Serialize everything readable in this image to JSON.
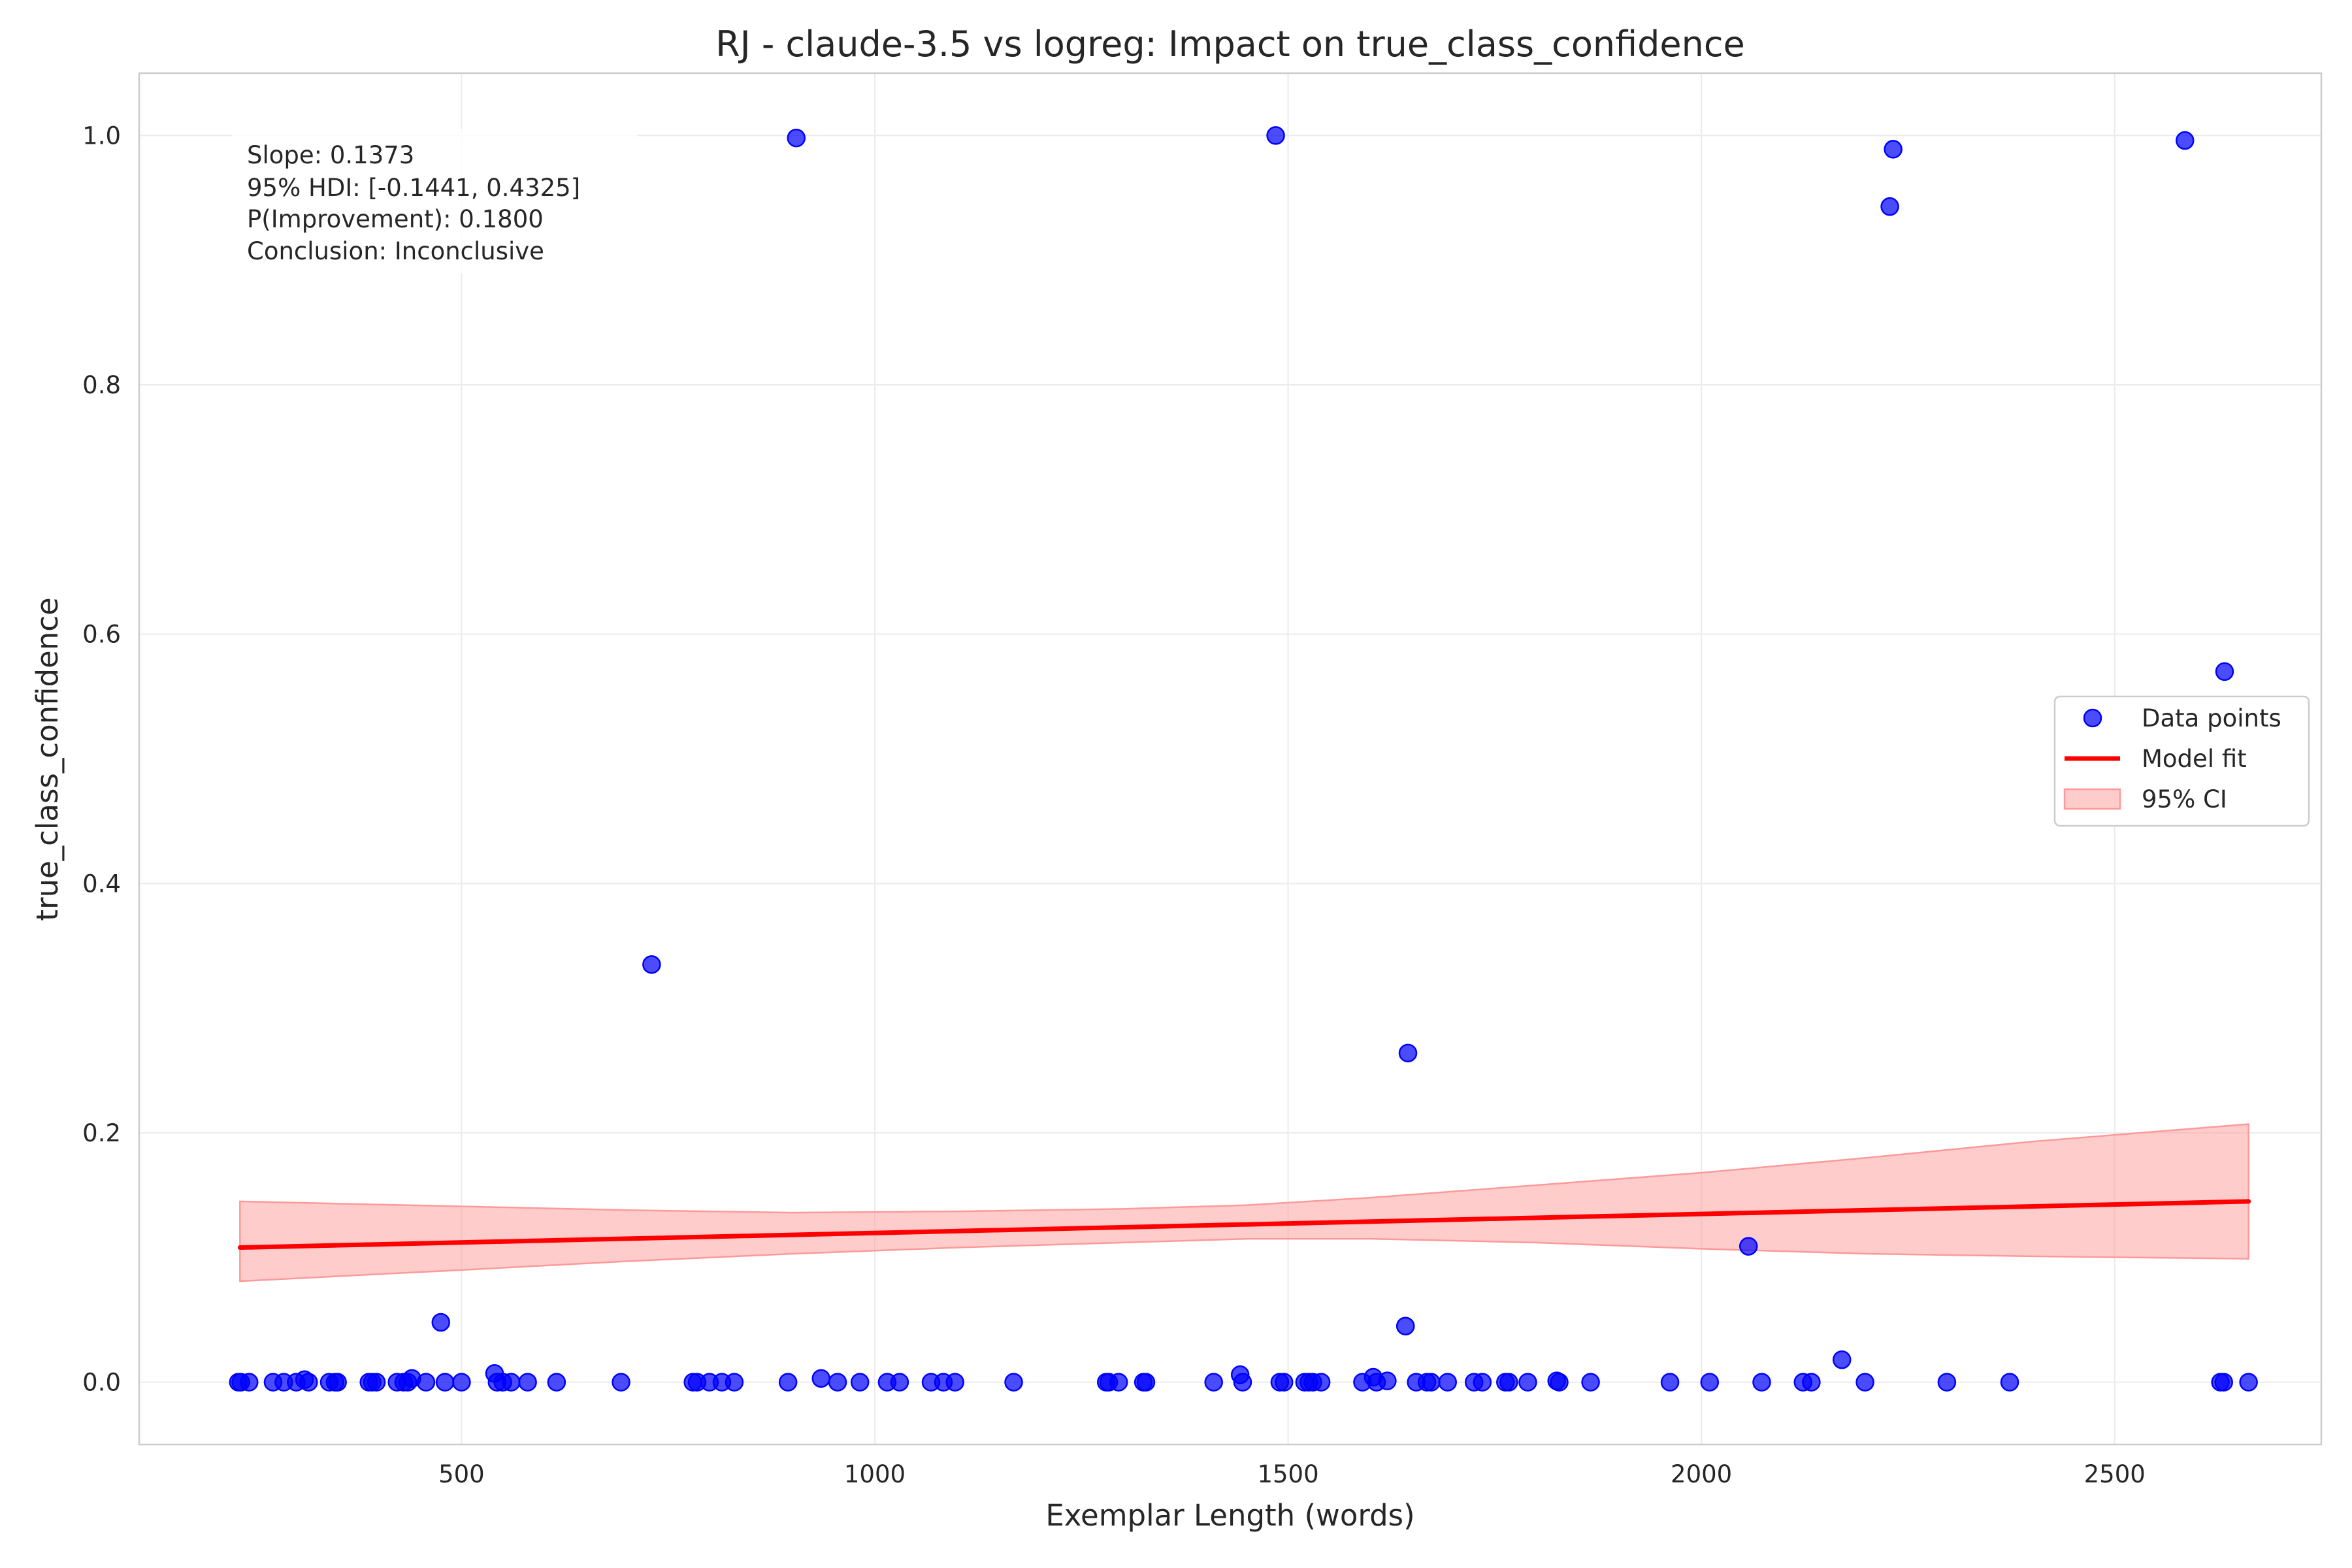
{
  "chart_data": {
    "type": "scatter",
    "title": "RJ - claude-3.5 vs logreg: Impact on true_class_confidence",
    "xlabel": "Exemplar Length (words)",
    "ylabel": "true_class_confidence",
    "xlim": [
      110,
      2750
    ],
    "ylim": [
      -0.05,
      1.05
    ],
    "xticks": [
      500,
      1000,
      1500,
      2000,
      2500
    ],
    "xtick_labels": [
      "500",
      "1000",
      "1500",
      "2000",
      "2500"
    ],
    "yticks": [
      0.0,
      0.2,
      0.4,
      0.6,
      0.8,
      1.0
    ],
    "ytick_labels": [
      "0.0",
      "0.2",
      "0.4",
      "0.6",
      "0.8",
      "1.0"
    ],
    "grid": true,
    "legend": {
      "placement": "center-right",
      "entries": [
        "Data points",
        "Model fit",
        "95% CI"
      ]
    },
    "annotation": [
      "Slope: 0.1373",
      "95% HDI: [-0.1441, 0.4325]",
      "P(Improvement): 0.1800",
      "Conclusion: Inconclusive"
    ],
    "colors": {
      "points": "#0000ff",
      "fit": "#ff0000",
      "ci": "#ff9999"
    },
    "series": [
      {
        "name": "Data points",
        "kind": "scatter",
        "points": [
          [
            230,
            0
          ],
          [
            233,
            0
          ],
          [
            243,
            0
          ],
          [
            272,
            0
          ],
          [
            285,
            0
          ],
          [
            300,
            0
          ],
          [
            310,
            0.002
          ],
          [
            315,
            0
          ],
          [
            340,
            0
          ],
          [
            347,
            0
          ],
          [
            350,
            0
          ],
          [
            388,
            0
          ],
          [
            392,
            0
          ],
          [
            397,
            0
          ],
          [
            422,
            0
          ],
          [
            430,
            0
          ],
          [
            435,
            0
          ],
          [
            440,
            0.003
          ],
          [
            457,
            0
          ],
          [
            475,
            0.048
          ],
          [
            480,
            0
          ],
          [
            500,
            0
          ],
          [
            540,
            0.007
          ],
          [
            543,
            0
          ],
          [
            550,
            0
          ],
          [
            560,
            0
          ],
          [
            580,
            0
          ],
          [
            615,
            0
          ],
          [
            693,
            0
          ],
          [
            730,
            0.335
          ],
          [
            780,
            0
          ],
          [
            785,
            0
          ],
          [
            800,
            0
          ],
          [
            815,
            0
          ],
          [
            830,
            0
          ],
          [
            895,
            0
          ],
          [
            905,
            0.998
          ],
          [
            935,
            0.003
          ],
          [
            955,
            0
          ],
          [
            982,
            0
          ],
          [
            1015,
            0
          ],
          [
            1030,
            0
          ],
          [
            1068,
            0
          ],
          [
            1083,
            0
          ],
          [
            1097,
            0
          ],
          [
            1168,
            0
          ],
          [
            1280,
            0
          ],
          [
            1283,
            0
          ],
          [
            1295,
            0
          ],
          [
            1325,
            0
          ],
          [
            1328,
            0
          ],
          [
            1410,
            0
          ],
          [
            1442,
            0.006
          ],
          [
            1445,
            0
          ],
          [
            1485,
            1.0
          ],
          [
            1490,
            0
          ],
          [
            1495,
            0
          ],
          [
            1520,
            0
          ],
          [
            1525,
            0
          ],
          [
            1530,
            0
          ],
          [
            1540,
            0
          ],
          [
            1590,
            0
          ],
          [
            1603,
            0.004
          ],
          [
            1607,
            0
          ],
          [
            1620,
            0.001
          ],
          [
            1642,
            0.045
          ],
          [
            1645,
            0.264
          ],
          [
            1655,
            0
          ],
          [
            1668,
            0
          ],
          [
            1673,
            0
          ],
          [
            1693,
            0
          ],
          [
            1725,
            0
          ],
          [
            1735,
            0
          ],
          [
            1763,
            0
          ],
          [
            1767,
            0
          ],
          [
            1790,
            0
          ],
          [
            1825,
            0.001
          ],
          [
            1828,
            0
          ],
          [
            1866,
            0
          ],
          [
            1962,
            0
          ],
          [
            2010,
            0
          ],
          [
            2057,
            0.109
          ],
          [
            2073,
            0
          ],
          [
            2123,
            0
          ],
          [
            2133,
            0
          ],
          [
            2170,
            0.018
          ],
          [
            2198,
            0
          ],
          [
            2228,
            0.943
          ],
          [
            2232,
            0.989
          ],
          [
            2297,
            0
          ],
          [
            2373,
            0
          ],
          [
            2585,
            0.996
          ],
          [
            2628,
            0
          ],
          [
            2632,
            0
          ],
          [
            2633,
            0.57
          ],
          [
            2662,
            0
          ]
        ]
      },
      {
        "name": "Model fit",
        "kind": "line",
        "points": [
          [
            232,
            0.108
          ],
          [
            2662,
            0.145
          ]
        ]
      },
      {
        "name": "95% CI",
        "kind": "band",
        "upper": [
          [
            232,
            0.145
          ],
          [
            500,
            0.141
          ],
          [
            700,
            0.138
          ],
          [
            900,
            0.136
          ],
          [
            1100,
            0.137
          ],
          [
            1300,
            0.139
          ],
          [
            1450,
            0.142
          ],
          [
            1600,
            0.148
          ],
          [
            1800,
            0.158
          ],
          [
            2000,
            0.168
          ],
          [
            2200,
            0.18
          ],
          [
            2400,
            0.193
          ],
          [
            2662,
            0.207
          ]
        ],
        "lower": [
          [
            232,
            0.081
          ],
          [
            500,
            0.09
          ],
          [
            700,
            0.097
          ],
          [
            900,
            0.103
          ],
          [
            1100,
            0.108
          ],
          [
            1300,
            0.112
          ],
          [
            1450,
            0.115
          ],
          [
            1600,
            0.115
          ],
          [
            1800,
            0.112
          ],
          [
            2000,
            0.107
          ],
          [
            2200,
            0.103
          ],
          [
            2400,
            0.101
          ],
          [
            2662,
            0.099
          ]
        ]
      }
    ]
  }
}
